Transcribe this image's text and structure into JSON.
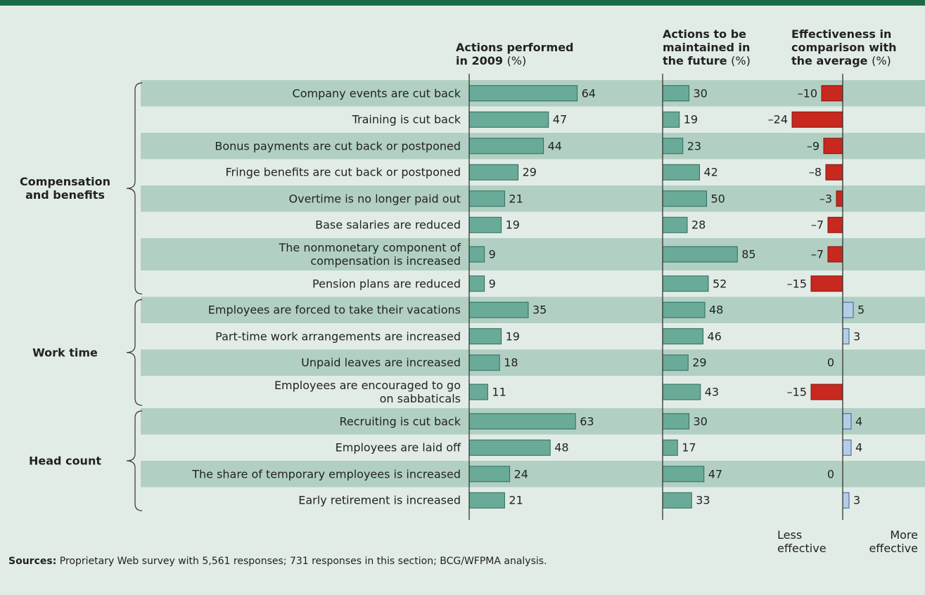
{
  "groups": [
    {
      "label": "Compensation\nand benefits",
      "categories": [
        "Company events are cut back",
        "Training is cut back",
        "Bonus payments are cut back or postponed",
        "Fringe benefits are cut back or postponed",
        "Overtime is no longer paid out",
        "Base salaries are reduced",
        "The nonmonetary component of\ncompensation is increased",
        "Pension plans are reduced"
      ]
    },
    {
      "label": "Work time",
      "categories": [
        "Employees are forced to take their vacations",
        "Part-time work arrangements are increased",
        "Unpaid leaves are increased",
        "Employees are encouraged to go\non sabbaticals"
      ]
    },
    {
      "label": "Head count",
      "categories": [
        "Recruiting is cut back",
        "Employees are laid off",
        "The share of temporary employees is increased",
        "Early retirement is increased"
      ]
    }
  ],
  "chart_data": [
    {
      "type": "bar",
      "title": "Actions performed\nin 2009",
      "title_unit": "(%)",
      "color": "#6aaa98",
      "values": [
        64,
        47,
        44,
        29,
        21,
        19,
        9,
        9,
        35,
        19,
        18,
        11,
        63,
        48,
        24,
        21
      ],
      "xlim": [
        0,
        100
      ]
    },
    {
      "type": "bar",
      "title": "Actions to be\nmaintained in\nthe future",
      "title_unit": "(%)",
      "color": "#6aaa98",
      "values": [
        30,
        19,
        23,
        42,
        50,
        28,
        85,
        52,
        48,
        46,
        29,
        43,
        30,
        17,
        47,
        33
      ],
      "xlim": [
        0,
        100
      ]
    },
    {
      "type": "diverging-bar",
      "title": "Effectiveness in\ncomparison with\nthe average",
      "title_unit": "(%)",
      "negative_color": "#c8281e",
      "positive_color": "#b4cce6",
      "values": [
        -10,
        -24,
        -9,
        -8,
        -3,
        -7,
        -7,
        -15,
        5,
        3,
        0,
        -15,
        4,
        4,
        0,
        3
      ],
      "value_labels": [
        "–10",
        "–24",
        "–9",
        "–8",
        "–3",
        "–7",
        "–7",
        "–15",
        "5",
        "3",
        "0",
        "–15",
        "4",
        "4",
        "0",
        "3"
      ],
      "xlim": [
        -30,
        30
      ],
      "annotations": [
        "Less\neffective",
        "More\neffective"
      ]
    }
  ],
  "footer": {
    "label": "Sources:",
    "text": "Proprietary Web survey with 5,561 responses; 731 responses in this section; BCG/WFPMA analysis."
  }
}
